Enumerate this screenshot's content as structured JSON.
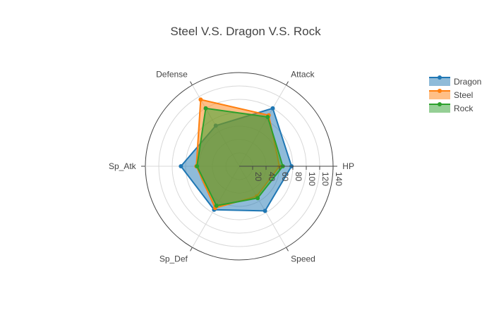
{
  "chart_data": {
    "type": "radar",
    "title": "Steel V.S. Dragon V.S. Rock",
    "categories": [
      "HP",
      "Attack",
      "Defense",
      "Sp_Atk",
      "Sp_Def",
      "Speed"
    ],
    "radial_range": [
      0,
      140
    ],
    "radial_ticks": [
      20,
      40,
      60,
      80,
      100,
      120,
      140
    ],
    "grid": true,
    "legend_position": "top-right",
    "series": [
      {
        "name": "Dragon",
        "color": "#1f77b4",
        "values": [
          78,
          100,
          70,
          87,
          75,
          77
        ]
      },
      {
        "name": "Steel",
        "color": "#ff7f0e",
        "values": [
          60,
          88,
          115,
          64,
          72,
          52
        ]
      },
      {
        "name": "Rock",
        "color": "#2ca02c",
        "values": [
          65,
          85,
          100,
          63,
          68,
          55
        ]
      }
    ]
  }
}
